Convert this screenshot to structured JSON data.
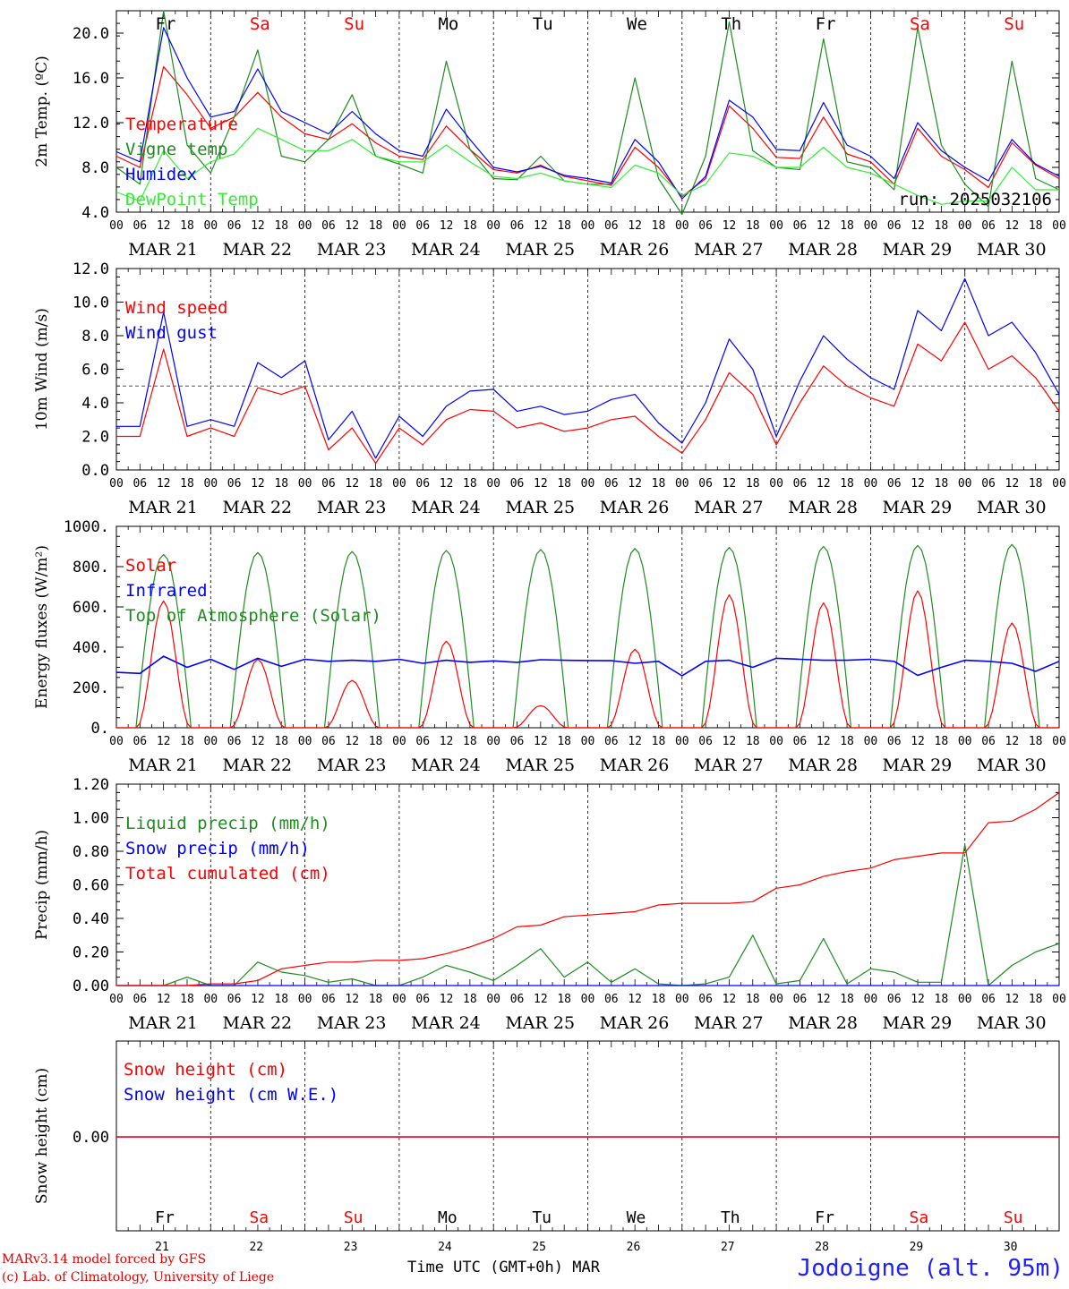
{
  "chart_data": [
    {
      "type": "line",
      "ylabel": "2m Temp. (ºC)",
      "ylim": [
        4.0,
        22.0
      ],
      "yticks": [
        "4.0",
        "8.0",
        "12.0",
        "16.0",
        "20.0"
      ],
      "annotation": "run: 2025032106",
      "x_hours": [
        0,
        6,
        12,
        18,
        24,
        30,
        36,
        42,
        48,
        54,
        60,
        66,
        72,
        78,
        84,
        90,
        96,
        102,
        108,
        114,
        120,
        126,
        132,
        138,
        144,
        150,
        156,
        162,
        168,
        174,
        180,
        186,
        192,
        198,
        204,
        210,
        216,
        222,
        228,
        234,
        240
      ],
      "series": [
        {
          "name": "Temperature",
          "color": "#ff0000",
          "values": [
            9.0,
            8.0,
            17.0,
            14.5,
            11.5,
            12.5,
            14.7,
            12.5,
            11.0,
            10.5,
            11.9,
            10.2,
            9.0,
            8.7,
            11.7,
            9.6,
            7.8,
            7.5,
            8.2,
            7.2,
            6.8,
            6.4,
            9.8,
            8.0,
            5.4,
            7.0,
            13.5,
            11.5,
            8.9,
            8.8,
            12.5,
            9.2,
            8.5,
            6.5,
            11.5,
            9.0,
            7.8,
            6.2,
            10.2,
            8.2,
            7.0
          ]
        },
        {
          "name": "Vigne temp",
          "color": "#1e8c1e",
          "values": [
            8.0,
            6.5,
            22.0,
            10.0,
            7.5,
            12.5,
            18.5,
            9.0,
            8.5,
            10.5,
            14.5,
            9.0,
            8.3,
            7.5,
            17.5,
            9.6,
            7.0,
            6.9,
            9.0,
            6.8,
            6.5,
            6.5,
            16.0,
            7.0,
            3.8,
            9.0,
            21.0,
            9.5,
            8.0,
            7.8,
            19.5,
            8.5,
            8.0,
            6.0,
            20.5,
            10.0,
            6.5,
            4.5,
            17.5,
            7.0,
            6.0
          ]
        },
        {
          "name": "Humidex",
          "color": "#0000ff",
          "values": [
            9.4,
            8.5,
            20.5,
            16.0,
            12.5,
            13.0,
            16.8,
            13.0,
            12.0,
            11.0,
            13.0,
            11.0,
            9.5,
            9.0,
            13.2,
            10.5,
            8.0,
            7.6,
            8.1,
            7.3,
            7.0,
            6.6,
            10.5,
            8.5,
            5.2,
            7.2,
            14.0,
            12.5,
            9.6,
            9.5,
            13.8,
            10.0,
            9.0,
            7.0,
            12.0,
            9.5,
            8.0,
            6.8,
            10.5,
            8.3,
            7.2
          ]
        },
        {
          "name": "DewPoint Temp",
          "color": "#33ee33",
          "values": [
            5.8,
            5.0,
            9.5,
            7.0,
            8.5,
            9.2,
            11.5,
            10.5,
            9.5,
            9.5,
            10.5,
            9.0,
            8.5,
            8.5,
            10.0,
            8.5,
            7.2,
            7.0,
            7.5,
            6.8,
            6.5,
            6.2,
            8.2,
            7.5,
            5.5,
            6.5,
            9.3,
            9.0,
            8.0,
            8.0,
            9.8,
            8.0,
            7.5,
            6.5,
            5.5,
            4.7,
            5.0,
            5.0,
            8.0,
            6.0,
            6.0
          ]
        }
      ]
    },
    {
      "type": "line",
      "ylabel": "10m Wind (m/s)",
      "ylim": [
        0.0,
        12.0
      ],
      "yticks": [
        "0.0",
        "2.0",
        "4.0",
        "6.0",
        "8.0",
        "10.0",
        "12.0"
      ],
      "reference_line": 5.0,
      "x_hours": [
        0,
        6,
        12,
        18,
        24,
        30,
        36,
        42,
        48,
        54,
        60,
        66,
        72,
        78,
        84,
        90,
        96,
        102,
        108,
        114,
        120,
        126,
        132,
        138,
        144,
        150,
        156,
        162,
        168,
        174,
        180,
        186,
        192,
        198,
        204,
        210,
        216,
        222,
        228,
        234,
        240
      ],
      "series": [
        {
          "name": "Wind speed",
          "color": "#ff0000",
          "values": [
            2.0,
            2.0,
            7.2,
            2.0,
            2.5,
            2.0,
            4.9,
            4.5,
            5.0,
            1.2,
            2.5,
            0.4,
            2.5,
            1.5,
            3.0,
            3.6,
            3.5,
            2.5,
            2.8,
            2.3,
            2.5,
            3.0,
            3.2,
            2.0,
            1.0,
            3.0,
            5.8,
            4.5,
            1.5,
            4.0,
            6.2,
            5.0,
            4.3,
            3.8,
            7.5,
            6.5,
            8.8,
            6.0,
            6.8,
            5.5,
            3.5
          ]
        },
        {
          "name": "Wind gust",
          "color": "#0000ff",
          "values": [
            2.6,
            2.6,
            9.4,
            2.6,
            3.0,
            2.6,
            6.4,
            5.5,
            6.5,
            1.8,
            3.5,
            0.7,
            3.2,
            2.0,
            3.8,
            4.7,
            4.8,
            3.5,
            3.8,
            3.3,
            3.5,
            4.2,
            4.5,
            2.8,
            1.6,
            4.0,
            7.8,
            6.0,
            2.0,
            5.3,
            8.0,
            6.6,
            5.5,
            4.8,
            9.5,
            8.3,
            11.4,
            8.0,
            8.8,
            7.0,
            4.5
          ]
        }
      ]
    },
    {
      "type": "line",
      "ylabel": "Energy fluxes (W/m²)",
      "ylim": [
        0,
        1000
      ],
      "yticks": [
        "0.",
        "200.",
        "400.",
        "600.",
        "800.",
        "1000."
      ],
      "day_peaks": {
        "Solar": [
          630,
          340,
          235,
          430,
          110,
          390,
          660,
          620,
          680,
          520
        ],
        "Top of Atmosphere (Solar)": [
          860,
          870,
          875,
          880,
          885,
          890,
          895,
          900,
          905,
          910
        ]
      },
      "series": [
        {
          "name": "Solar",
          "color": "#ff0000"
        },
        {
          "name": "Infrared",
          "color": "#0000ff",
          "values": [
            275,
            270,
            355,
            300,
            340,
            290,
            345,
            305,
            340,
            330,
            335,
            330,
            340,
            320,
            335,
            325,
            332,
            325,
            338,
            335,
            334,
            333,
            320,
            330,
            258,
            330,
            335,
            300,
            345,
            340,
            335,
            335,
            340,
            330,
            260,
            300,
            335,
            330,
            320,
            280,
            330
          ]
        },
        {
          "name": "Top of Atmosphere (Solar)",
          "color": "#1e8c1e"
        }
      ]
    },
    {
      "type": "line",
      "ylabel": "Precip (mm/h)",
      "ylim": [
        0.0,
        1.2
      ],
      "yticks": [
        "0.00",
        "0.20",
        "0.40",
        "0.60",
        "0.80",
        "1.00",
        "1.20"
      ],
      "x_hours": [
        0,
        6,
        12,
        18,
        24,
        30,
        36,
        42,
        48,
        54,
        60,
        66,
        72,
        78,
        84,
        90,
        96,
        102,
        108,
        114,
        120,
        126,
        132,
        138,
        144,
        150,
        156,
        162,
        168,
        174,
        180,
        186,
        192,
        198,
        204,
        210,
        216,
        222,
        228,
        234,
        240
      ],
      "series": [
        {
          "name": "Liquid precip (mm/h)",
          "color": "#1e8c1e",
          "values": [
            0,
            0,
            0,
            0.05,
            0,
            0,
            0.14,
            0.08,
            0.06,
            0.02,
            0.04,
            0,
            0,
            0.05,
            0.12,
            0.08,
            0.03,
            0.12,
            0.22,
            0.05,
            0.14,
            0.02,
            0.1,
            0.01,
            0,
            0.01,
            0.05,
            0.3,
            0.01,
            0.03,
            0.28,
            0.01,
            0.1,
            0.08,
            0.02,
            0.02,
            0.84,
            0,
            0.12,
            0.2,
            0.25
          ]
        },
        {
          "name": "Snow precip (mm/h)",
          "color": "#0000ff",
          "values": [
            0,
            0,
            0,
            0,
            0,
            0,
            0,
            0,
            0,
            0,
            0,
            0,
            0,
            0,
            0,
            0,
            0,
            0,
            0,
            0,
            0,
            0,
            0,
            0,
            0,
            0,
            0,
            0,
            0,
            0,
            0,
            0,
            0,
            0,
            0,
            0,
            0,
            0,
            0,
            0,
            0
          ]
        },
        {
          "name": "Total cumulated (cm)",
          "color": "#ff0000",
          "values": [
            0,
            0,
            0,
            0,
            0.01,
            0.01,
            0.03,
            0.1,
            0.12,
            0.14,
            0.14,
            0.15,
            0.15,
            0.16,
            0.19,
            0.23,
            0.28,
            0.35,
            0.36,
            0.41,
            0.42,
            0.43,
            0.44,
            0.48,
            0.49,
            0.49,
            0.49,
            0.5,
            0.58,
            0.6,
            0.65,
            0.68,
            0.7,
            0.75,
            0.77,
            0.79,
            0.79,
            0.97,
            0.98,
            1.05,
            1.15
          ]
        }
      ]
    },
    {
      "type": "line",
      "ylabel": "Snow height (cm)",
      "ytick": "0.00",
      "series": [
        {
          "name": "Snow height (cm)",
          "color": "#ff0000",
          "values": [
            0,
            0
          ]
        },
        {
          "name": "Snow height (cm W.E.)",
          "color": "#0000ff",
          "values": [
            0,
            0
          ]
        }
      ]
    }
  ],
  "days": [
    {
      "abbr": "Fr",
      "date": "MAR 21",
      "num": "21",
      "weekend": false
    },
    {
      "abbr": "Sa",
      "date": "MAR 22",
      "num": "22",
      "weekend": true
    },
    {
      "abbr": "Su",
      "date": "MAR 23",
      "num": "23",
      "weekend": true
    },
    {
      "abbr": "Mo",
      "date": "MAR 24",
      "num": "24",
      "weekend": false
    },
    {
      "abbr": "Tu",
      "date": "MAR 25",
      "num": "25",
      "weekend": false
    },
    {
      "abbr": "We",
      "date": "MAR 26",
      "num": "26",
      "weekend": false
    },
    {
      "abbr": "Th",
      "date": "MAR 27",
      "num": "27",
      "weekend": false
    },
    {
      "abbr": "Fr",
      "date": "MAR 28",
      "num": "28",
      "weekend": false
    },
    {
      "abbr": "Sa",
      "date": "MAR 29",
      "num": "29",
      "weekend": true
    },
    {
      "abbr": "Su",
      "date": "MAR 30",
      "num": "30",
      "weekend": true
    }
  ],
  "hour_ticks": [
    "00",
    "06",
    "12",
    "18"
  ],
  "last_tick": "00",
  "footer": {
    "model": "MARv3.14 model forced by GFS",
    "credit": "(c) Lab. of Climatology, University of Liege",
    "xlabel": "Time UTC (GMT+0h)",
    "month": "MAR",
    "site": "Jodoigne (alt. 95m)"
  },
  "colors": {
    "weekend": "#ff0000",
    "weekday": "#000000"
  }
}
